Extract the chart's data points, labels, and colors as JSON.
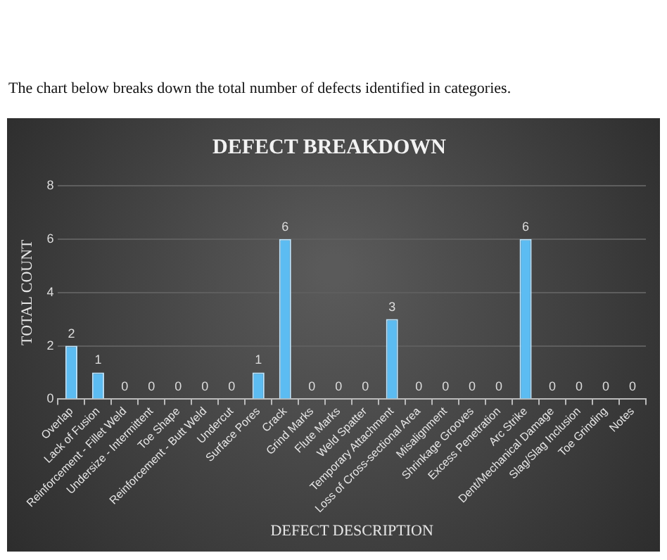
{
  "chart_data": {
    "type": "bar",
    "title": "DEFECT BREAKDOWN",
    "xlabel": "DEFECT DESCRIPTION",
    "ylabel": "TOTAL COUNT",
    "annotations": [
      "The chart below breaks down the total number of defects identified in categories."
    ],
    "categories": [
      "Overlap",
      "Lack of Fusion",
      "Reinforcement - Fillet Weld",
      "Undersize - Intermittent",
      "Toe Shape",
      "Reinforcement - Butt Weld",
      "Undercut",
      "Surface Pores",
      "Crack",
      "Grind Marks",
      "Flute Marks",
      "Weld Spatter",
      "Temporary Attachment",
      "Loss of Cross-sectional Area",
      "Misalignment",
      "Shrinkage Grooves",
      "Excess Penetration",
      "Arc Strike",
      "Dent/Mechanical Damage",
      "Slag/Slag Inclusion",
      "Toe Grinding",
      "Notes"
    ],
    "values": [
      2,
      1,
      0,
      0,
      0,
      0,
      0,
      1,
      6,
      0,
      0,
      0,
      3,
      0,
      0,
      0,
      0,
      6,
      0,
      0,
      0,
      0
    ],
    "color": "#5cbcf2",
    "ylim": [
      0,
      8
    ],
    "yticks": [
      0,
      2,
      4,
      6,
      8
    ],
    "grid": "y",
    "data_labels": true,
    "legend": false
  }
}
